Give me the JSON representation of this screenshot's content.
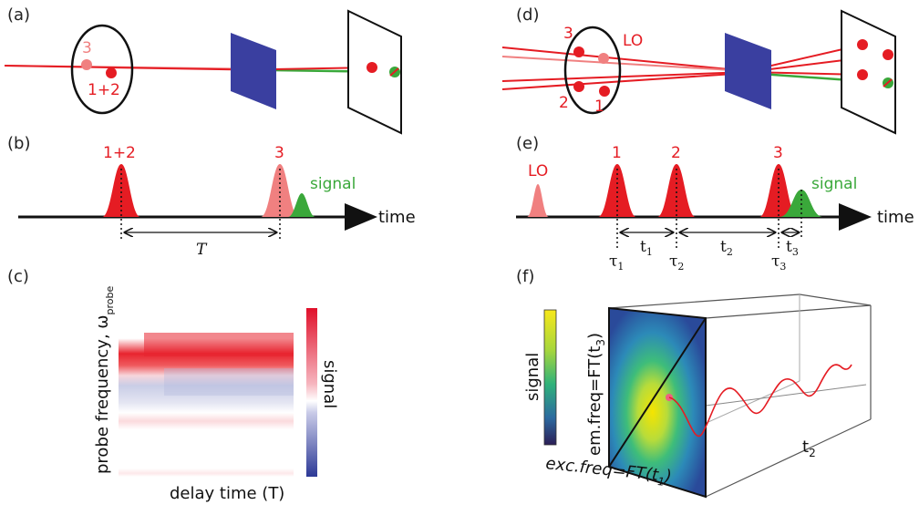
{
  "panels": {
    "a": {
      "letter": "(a)",
      "beam3": "3",
      "beam12": "1+2"
    },
    "b": {
      "letter": "(b)",
      "pulse12": "1+2",
      "pulse3": "3",
      "signal": "signal",
      "time": "time",
      "delay": "T"
    },
    "c": {
      "letter": "(c)",
      "ylabel": "probe frequency, ω",
      "ylabel_sub": "probe",
      "xlabel": "delay time (T)",
      "colorbar": "signal"
    },
    "d": {
      "letter": "(d)",
      "b1": "1",
      "b2": "2",
      "b3": "3",
      "lo": "LO"
    },
    "e": {
      "letter": "(e)",
      "lo": "LO",
      "p1": "1",
      "p2": "2",
      "p3": "3",
      "signal": "signal",
      "time": "time",
      "tau1": "τ",
      "tau1_sub": "1",
      "tau2": "τ",
      "tau2_sub": "2",
      "tau3": "τ",
      "tau3_sub": "3",
      "t1": "t",
      "t1_sub": "1",
      "t2": "t",
      "t2_sub": "2",
      "t3": "t",
      "t3_sub": "3"
    },
    "f": {
      "letter": "(f)",
      "colorbar": "signal",
      "yaxis": "em.freq=FT(t",
      "yaxis_sub": "3",
      "yaxis_end": ")",
      "xaxis": "exc.freq=FT(t",
      "xaxis_sub": "1",
      "xaxis_end": ")",
      "depth": "t",
      "depth_sub": "2"
    }
  },
  "colors": {
    "red": "#e51c23",
    "pink": "#f08080",
    "green": "#3aa83a",
    "blue_panel": "#3a3fa0"
  }
}
